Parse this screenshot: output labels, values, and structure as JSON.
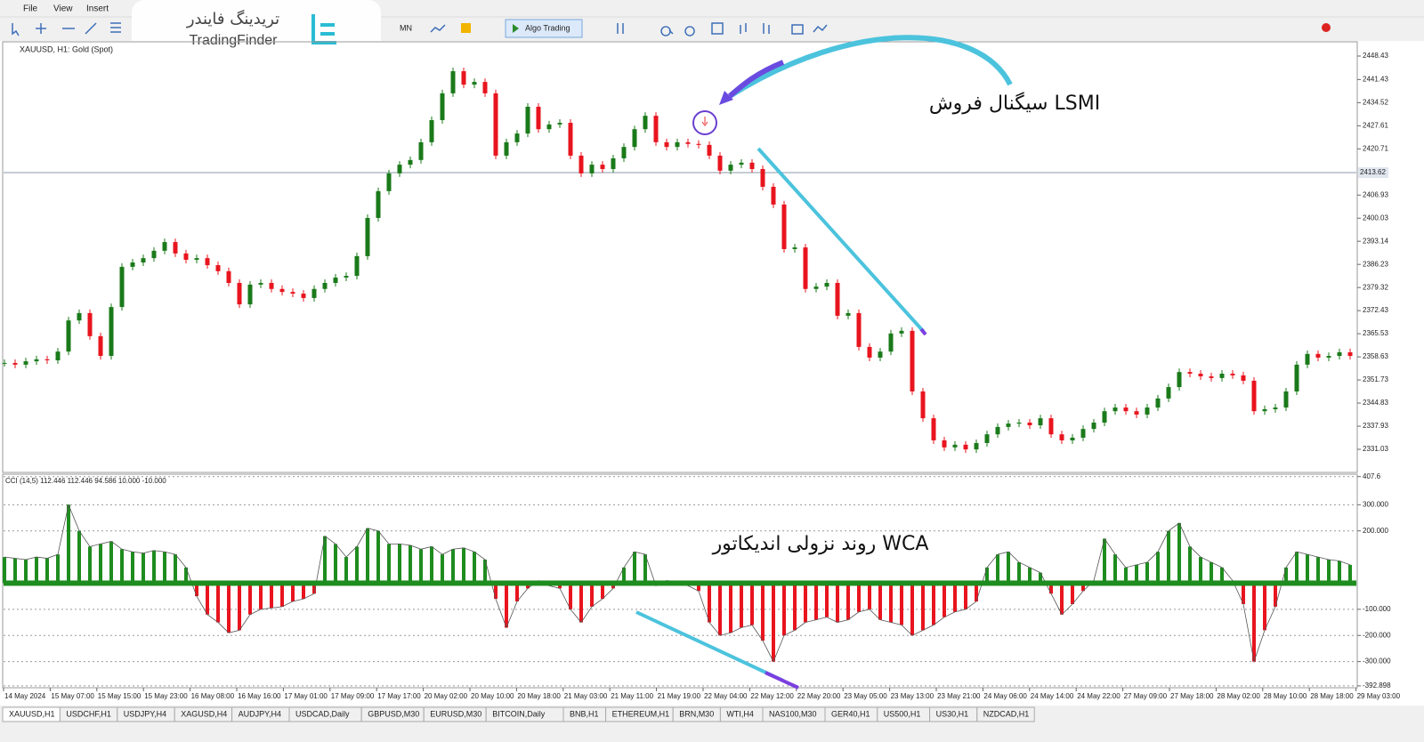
{
  "menu": [
    "File",
    "View",
    "Insert"
  ],
  "toolbar": {
    "timeframe": "MN",
    "algo": "Algo Trading"
  },
  "logo": {
    "fa": "تریدینگ فایندر",
    "en": "TradingFinder"
  },
  "chart_data": [
    {
      "type": "candlestick",
      "title": "XAUUSD, H1: Gold (Spot)",
      "annotation": "سیگنال فروش LSMI",
      "up_color": "#1a7a1a",
      "down_color": "#e8141e",
      "values": [
        2356.8,
        2356.3,
        2357.3,
        2357.9,
        2357.6,
        2360.2,
        2369.5,
        2371.7,
        2364.8,
        2358.9,
        2373.5,
        2385.5,
        2386.8,
        2388.1,
        2390.3,
        2392.9,
        2389.5,
        2387.6,
        2388.1,
        2386.0,
        2384.2,
        2380.7,
        2374.3,
        2380.2,
        2380.7,
        2378.9,
        2378.0,
        2377.5,
        2376.2,
        2378.9,
        2380.7,
        2382.3,
        2382.8,
        2388.7,
        2400.1,
        2408.1,
        2413.4,
        2416.0,
        2417.4,
        2422.7,
        2429.3,
        2437.3,
        2443.9,
        2439.9,
        2440.7,
        2437.3,
        2418.7,
        2422.7,
        2425.3,
        2433.3,
        2426.6,
        2428.0,
        2428.5,
        2418.7,
        2413.4,
        2416.0,
        2414.7,
        2417.9,
        2421.3,
        2426.6,
        2430.6,
        2422.7,
        2421.3,
        2422.7,
        2422.2,
        2421.9,
        2418.7,
        2414.2,
        2416.0,
        2416.6,
        2414.7,
        2409.4,
        2404.1,
        2390.8,
        2391.3,
        2378.9,
        2379.6,
        2380.7,
        2370.9,
        2371.7,
        2361.6,
        2358.4,
        2360.2,
        2365.6,
        2366.4,
        2348.3,
        2340.3,
        2333.7,
        2331.6,
        2332.4,
        2331.0,
        2332.9,
        2335.5,
        2337.7,
        2338.7,
        2339.0,
        2338.2,
        2340.3,
        2335.5,
        2333.7,
        2334.5,
        2337.1,
        2339.0,
        2342.4,
        2343.5,
        2342.4,
        2341.4,
        2343.5,
        2346.2,
        2349.6,
        2354.1,
        2353.6,
        2352.8,
        2352.3,
        2353.6,
        2353.1,
        2351.5,
        2342.4,
        2343.0,
        2343.5,
        2348.3,
        2356.3,
        2359.5,
        2358.4,
        2358.9,
        2360.0,
        2358.9
      ],
      "ylim": [
        2324.39,
        2452.68
      ],
      "yticks": [
        2448.43,
        2441.43,
        2434.52,
        2427.61,
        2420.71,
        2406.93,
        2400.03,
        2393.14,
        2386.23,
        2379.32,
        2372.43,
        2365.53,
        2358.63,
        2351.73,
        2344.83,
        2337.93,
        2331.03
      ],
      "current_price": 2413.62
    },
    {
      "type": "bar",
      "title": "CCI (14,5) 112.446 112.446 94.586 10.000 -10.000",
      "annotation": "روند نزولی اندیکاتور WCA",
      "up_color": "#1e8c1e",
      "down_color": "#e8141e",
      "values": [
        100,
        95,
        90,
        100,
        95,
        110,
        300,
        200,
        140,
        150,
        160,
        130,
        120,
        115,
        125,
        120,
        110,
        60,
        -50,
        -120,
        -150,
        -190,
        -180,
        -120,
        -100,
        -95,
        -90,
        -70,
        -60,
        -40,
        180,
        150,
        100,
        140,
        210,
        200,
        150,
        150,
        145,
        130,
        140,
        110,
        130,
        135,
        120,
        90,
        -60,
        -170,
        -70,
        -20,
        10,
        -10,
        -20,
        -100,
        -150,
        -90,
        -60,
        -20,
        60,
        120,
        110,
        -10,
        10,
        5,
        -10,
        -30,
        -150,
        -200,
        -190,
        -170,
        -160,
        -220,
        -300,
        -200,
        -180,
        -150,
        -140,
        -130,
        -150,
        -140,
        -110,
        -100,
        -140,
        -150,
        -160,
        -200,
        -180,
        -160,
        -130,
        -110,
        -100,
        -70,
        60,
        110,
        120,
        80,
        60,
        40,
        -40,
        -120,
        -80,
        -30,
        10,
        170,
        110,
        60,
        70,
        80,
        120,
        200,
        230,
        140,
        100,
        80,
        60,
        10,
        -80,
        -300,
        -180,
        -90,
        60,
        120,
        110,
        100,
        90,
        85,
        70
      ],
      "ylim": [
        -400,
        410
      ],
      "yticks": [
        407.6,
        {
          "value": 300,
          "label": "300.000"
        },
        {
          "value": 200,
          "label": "200.000"
        },
        {
          "value": -100,
          "label": "-100.000"
        },
        {
          "value": -200,
          "label": "-200.000"
        },
        {
          "value": -300,
          "label": "-300.000"
        },
        -392.898
      ]
    }
  ],
  "time_axis": [
    "14 May 2024",
    "15 May 07:00",
    "15 May 15:00",
    "15 May 23:00",
    "16 May 08:00",
    "16 May 16:00",
    "17 May 01:00",
    "17 May 09:00",
    "17 May 17:00",
    "20 May 02:00",
    "20 May 10:00",
    "20 May 18:00",
    "21 May 03:00",
    "21 May 11:00",
    "21 May 19:00",
    "22 May 04:00",
    "22 May 12:00",
    "22 May 20:00",
    "23 May 05:00",
    "23 May 13:00",
    "23 May 21:00",
    "24 May 06:00",
    "24 May 14:00",
    "24 May 22:00",
    "27 May 09:00",
    "27 May 18:00",
    "28 May 02:00",
    "28 May 10:00",
    "28 May 18:00",
    "29 May 03:00"
  ],
  "tabs": [
    "XAUUSD,H1",
    "USDCHF,H1",
    "USDJPY,H4",
    "XAGUSD,H4",
    "AUDJPY,H4",
    "USDCAD,Daily",
    "GBPUSD,M30",
    "EURUSD,M30",
    "BITCOIN,Daily",
    "BNB,H1",
    "ETHEREUM,H1",
    "BRN,M30",
    "WTI,H4",
    "NAS100,M30",
    "GER40,H1",
    "US500,H1",
    "US30,H1",
    "NZDCAD,H1"
  ]
}
